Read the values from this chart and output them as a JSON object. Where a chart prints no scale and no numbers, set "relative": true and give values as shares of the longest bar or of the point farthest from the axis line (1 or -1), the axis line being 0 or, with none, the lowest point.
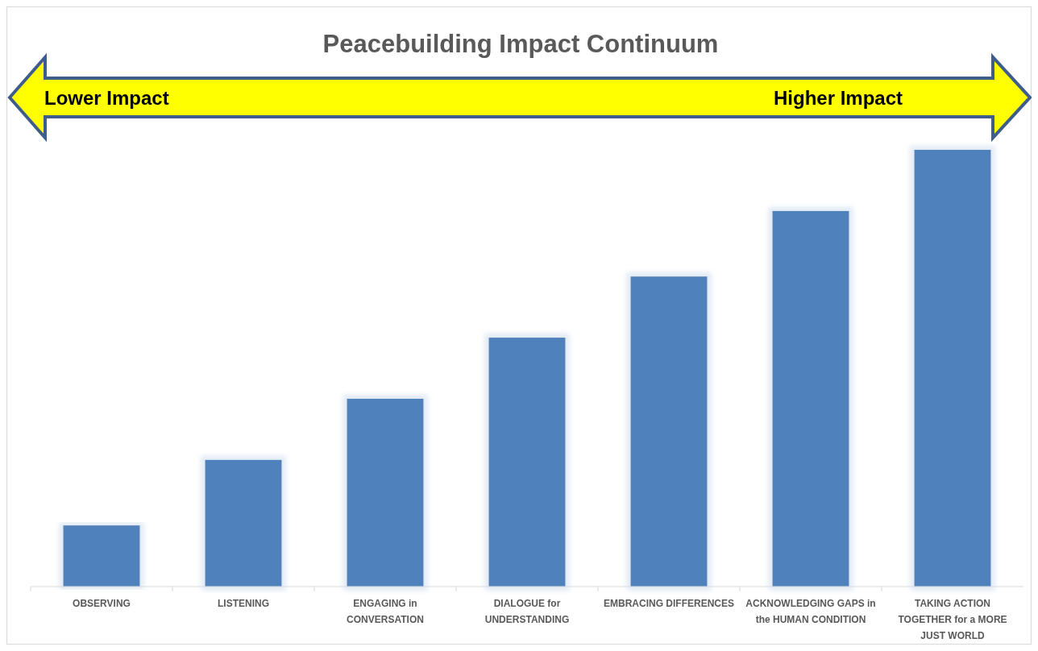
{
  "chart_data": {
    "type": "bar",
    "title": "Peacebuilding Impact Continuum",
    "relative": true,
    "color": "#4f81bd",
    "categories": [
      "OBSERVING",
      "LISTENING",
      "ENGAGING in CONVERSATION",
      "DIALOGUE for UNDERSTANDING",
      "EMBRACING DIFFERENCES",
      "ACKNOWLEDGING GAPS in the HUMAN CONDITION",
      "TAKING ACTION TOGETHER for a MORE JUST WORLD"
    ],
    "values": [
      0.14,
      0.29,
      0.43,
      0.57,
      0.71,
      0.86,
      1
    ],
    "annotations": [
      "Lower Impact",
      "Higher Impact"
    ]
  }
}
